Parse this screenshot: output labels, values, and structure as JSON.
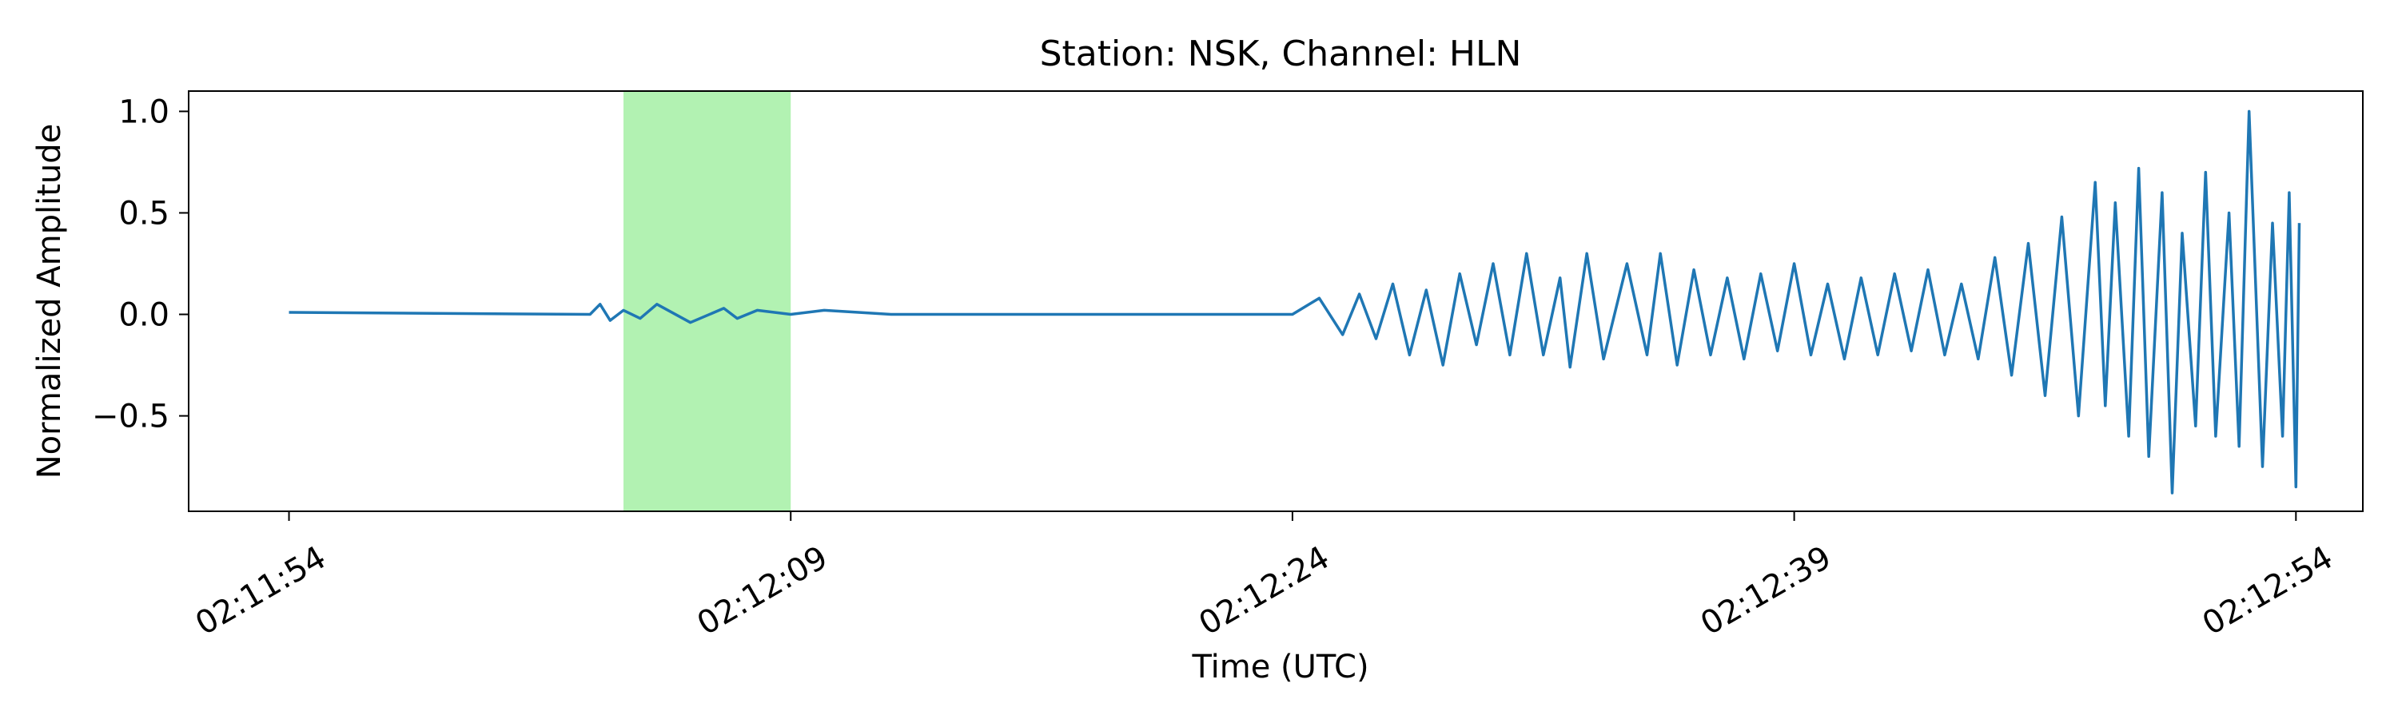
{
  "chart_data": {
    "type": "line",
    "title": "Station: NSK, Channel: HLN",
    "xlabel": "Time (UTC)",
    "ylabel": "Normalized Amplitude",
    "x_unit": "UTC time",
    "xlim": [
      "02:11:51",
      "02:12:56"
    ],
    "ylim": [
      -0.97,
      1.1
    ],
    "x_ticks": [
      "02:11:54",
      "02:12:09",
      "02:12:24",
      "02:12:39",
      "02:12:54"
    ],
    "y_ticks": [
      1.0,
      0.5,
      0.0,
      -0.5
    ],
    "y_tick_labels": [
      "1.0",
      "0.5",
      "0.0",
      "−0.5"
    ],
    "highlight": {
      "start": "02:12:04",
      "end": "02:12:09",
      "color": "#b2f2b2"
    },
    "line_color": "#1f77b4",
    "grid": false,
    "series": [
      {
        "x": [
          "02:11:54",
          "02:12:03",
          "02:12:03.3",
          "02:12:03.6",
          "02:12:04",
          "02:12:04.5",
          "02:12:05",
          "02:12:06",
          "02:12:07",
          "02:12:07.4",
          "02:12:08",
          "02:12:09",
          "02:12:10",
          "02:12:12",
          "02:12:18",
          "02:12:24",
          "02:12:24.8",
          "02:12:25.5",
          "02:12:26",
          "02:12:26.5",
          "02:12:27",
          "02:12:27.5",
          "02:12:28",
          "02:12:28.5",
          "02:12:29",
          "02:12:29.5",
          "02:12:30",
          "02:12:30.5",
          "02:12:31",
          "02:12:31.5",
          "02:12:32",
          "02:12:32.3",
          "02:12:32.8",
          "02:12:33.3",
          "02:12:34",
          "02:12:34.6",
          "02:12:35",
          "02:12:35.5",
          "02:12:36",
          "02:12:36.5",
          "02:12:37",
          "02:12:37.5",
          "02:12:38",
          "02:12:38.5",
          "02:12:39",
          "02:12:39.5",
          "02:12:40",
          "02:12:40.5",
          "02:12:41",
          "02:12:41.5",
          "02:12:42",
          "02:12:42.5",
          "02:12:43",
          "02:12:43.5",
          "02:12:44",
          "02:12:44.5",
          "02:12:45",
          "02:12:45.5",
          "02:12:46",
          "02:12:46.5",
          "02:12:47",
          "02:12:47.5",
          "02:12:48",
          "02:12:48.3",
          "02:12:48.6",
          "02:12:49",
          "02:12:49.3",
          "02:12:49.6",
          "02:12:50",
          "02:12:50.3",
          "02:12:50.6",
          "02:12:51",
          "02:12:51.3",
          "02:12:51.6",
          "02:12:52",
          "02:12:52.3",
          "02:12:52.6",
          "02:12:53",
          "02:12:53.3",
          "02:12:53.6",
          "02:12:53.8",
          "02:12:54",
          "02:12:54.1"
        ],
        "y": [
          0.01,
          0.0,
          0.05,
          -0.03,
          0.02,
          -0.02,
          0.05,
          -0.04,
          0.03,
          -0.02,
          0.02,
          0.0,
          0.02,
          0.0,
          0.0,
          0.0,
          0.08,
          -0.1,
          0.1,
          -0.12,
          0.15,
          -0.2,
          0.12,
          -0.25,
          0.2,
          -0.15,
          0.25,
          -0.2,
          0.3,
          -0.2,
          0.18,
          -0.26,
          0.3,
          -0.22,
          0.25,
          -0.2,
          0.3,
          -0.25,
          0.22,
          -0.2,
          0.18,
          -0.22,
          0.2,
          -0.18,
          0.25,
          -0.2,
          0.15,
          -0.22,
          0.18,
          -0.2,
          0.2,
          -0.18,
          0.22,
          -0.2,
          0.15,
          -0.22,
          0.28,
          -0.3,
          0.35,
          -0.4,
          0.48,
          -0.5,
          0.65,
          -0.45,
          0.55,
          -0.6,
          0.72,
          -0.7,
          0.6,
          -0.88,
          0.4,
          -0.55,
          0.7,
          -0.6,
          0.5,
          -0.65,
          1.0,
          -0.75,
          0.45,
          -0.6,
          0.6,
          -0.85,
          0.45
        ]
      }
    ]
  }
}
